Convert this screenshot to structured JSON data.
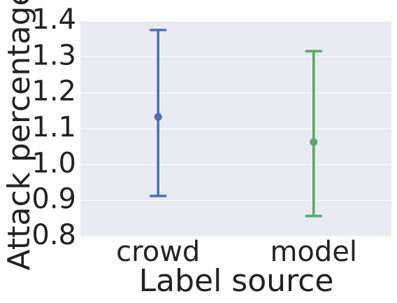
{
  "chart_data": {
    "type": "pointplot",
    "xlabel": "Label source",
    "ylabel": "Attack percentage",
    "categories": [
      "crowd",
      "model"
    ],
    "values": [
      1.133,
      1.063
    ],
    "lower": [
      0.913,
      0.857
    ],
    "upper": [
      1.375,
      1.316
    ],
    "colors": [
      "#4c72b0",
      "#55a868"
    ],
    "ylim": [
      0.8,
      1.4
    ],
    "yticks": [
      0.8,
      0.9,
      {
        "value": 1.0,
        "label": "1.0"
      },
      1.1,
      1.2,
      1.3,
      1.4
    ],
    "grid": true
  }
}
